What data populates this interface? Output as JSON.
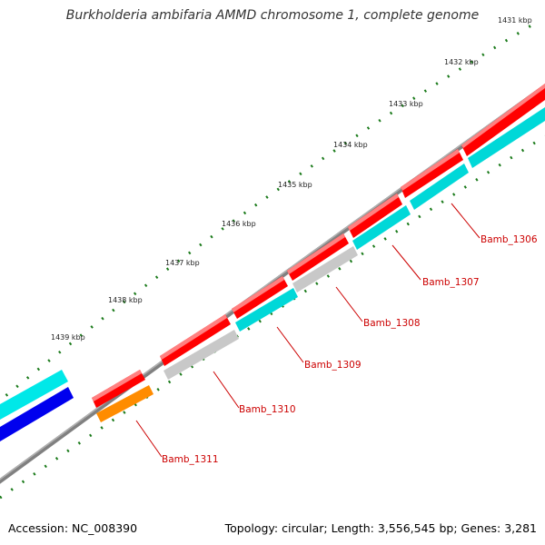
{
  "title": "Burkholderia ambifaria AMMD chromosome 1, complete genome",
  "footer": {
    "accession": "Accession: NC_008390",
    "topology": "Topology: circular; Length: 3,556,545 bp; Genes: 3,281"
  },
  "colors": {
    "backbone": "#808080",
    "tick": "#1a7a1a",
    "label": "#cc0000",
    "red": "#ff0000",
    "cyan": "#00dddd",
    "gray": "#c8c8c8",
    "orange": "#ff8c00",
    "blue": "#0000ee"
  },
  "scale": {
    "unit": "kbp",
    "ticks": [
      "1431 kbp",
      "1432 kbp",
      "1433 kbp",
      "1434 kbp",
      "1435 kbp",
      "1436 kbp",
      "1437 kbp",
      "1438 kbp",
      "1439 kbp"
    ]
  },
  "genes": [
    {
      "name": "Bamb_1306"
    },
    {
      "name": "Bamb_1307"
    },
    {
      "name": "Bamb_1308"
    },
    {
      "name": "Bamb_1309"
    },
    {
      "name": "Bamb_1310"
    },
    {
      "name": "Bamb_1311"
    }
  ]
}
